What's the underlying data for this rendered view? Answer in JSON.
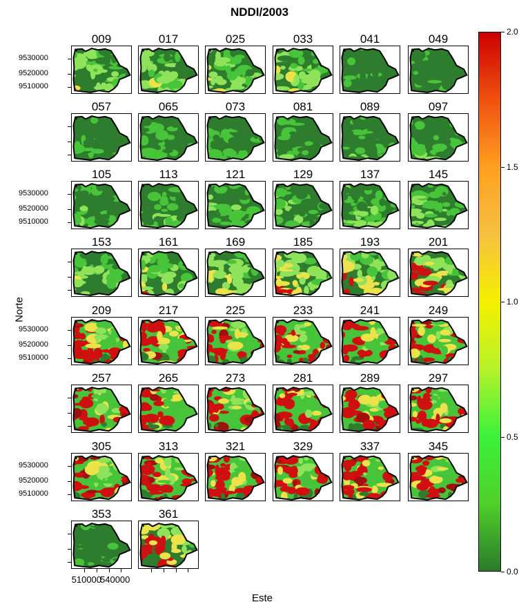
{
  "title": "NDDI/2003",
  "xlabel": "Este",
  "ylabel": "Norte",
  "panels": [
    "009",
    "017",
    "025",
    "033",
    "041",
    "049",
    "057",
    "065",
    "073",
    "081",
    "089",
    "097",
    "105",
    "113",
    "121",
    "129",
    "137",
    "145",
    "153",
    "161",
    "169",
    "185",
    "193",
    "201",
    "209",
    "217",
    "225",
    "233",
    "241",
    "249",
    "257",
    "265",
    "273",
    "281",
    "289",
    "297",
    "305",
    "313",
    "321",
    "329",
    "337",
    "345",
    "353",
    "361"
  ],
  "y_ticks": [
    "9530000",
    "9520000",
    "9510000"
  ],
  "x_ticks": [
    "510000",
    "540000"
  ],
  "colorbar": {
    "ticks": [
      "0.0",
      "0.5",
      "1.0",
      "1.5",
      "2.0"
    ],
    "range": [
      0,
      2
    ],
    "colors": [
      "#2a7a2a",
      "#4fd02a",
      "#3af23a",
      "#b6f22a",
      "#f5f000",
      "#f5c040",
      "#ffa020",
      "#f05010",
      "#cc0000"
    ]
  },
  "colors": {
    "dark_green": "#2e7d2e",
    "green": "#47c43a",
    "light_green": "#8ee35a",
    "yellow": "#ece24a",
    "red": "#d01010",
    "dark_red": "#a01010"
  }
}
